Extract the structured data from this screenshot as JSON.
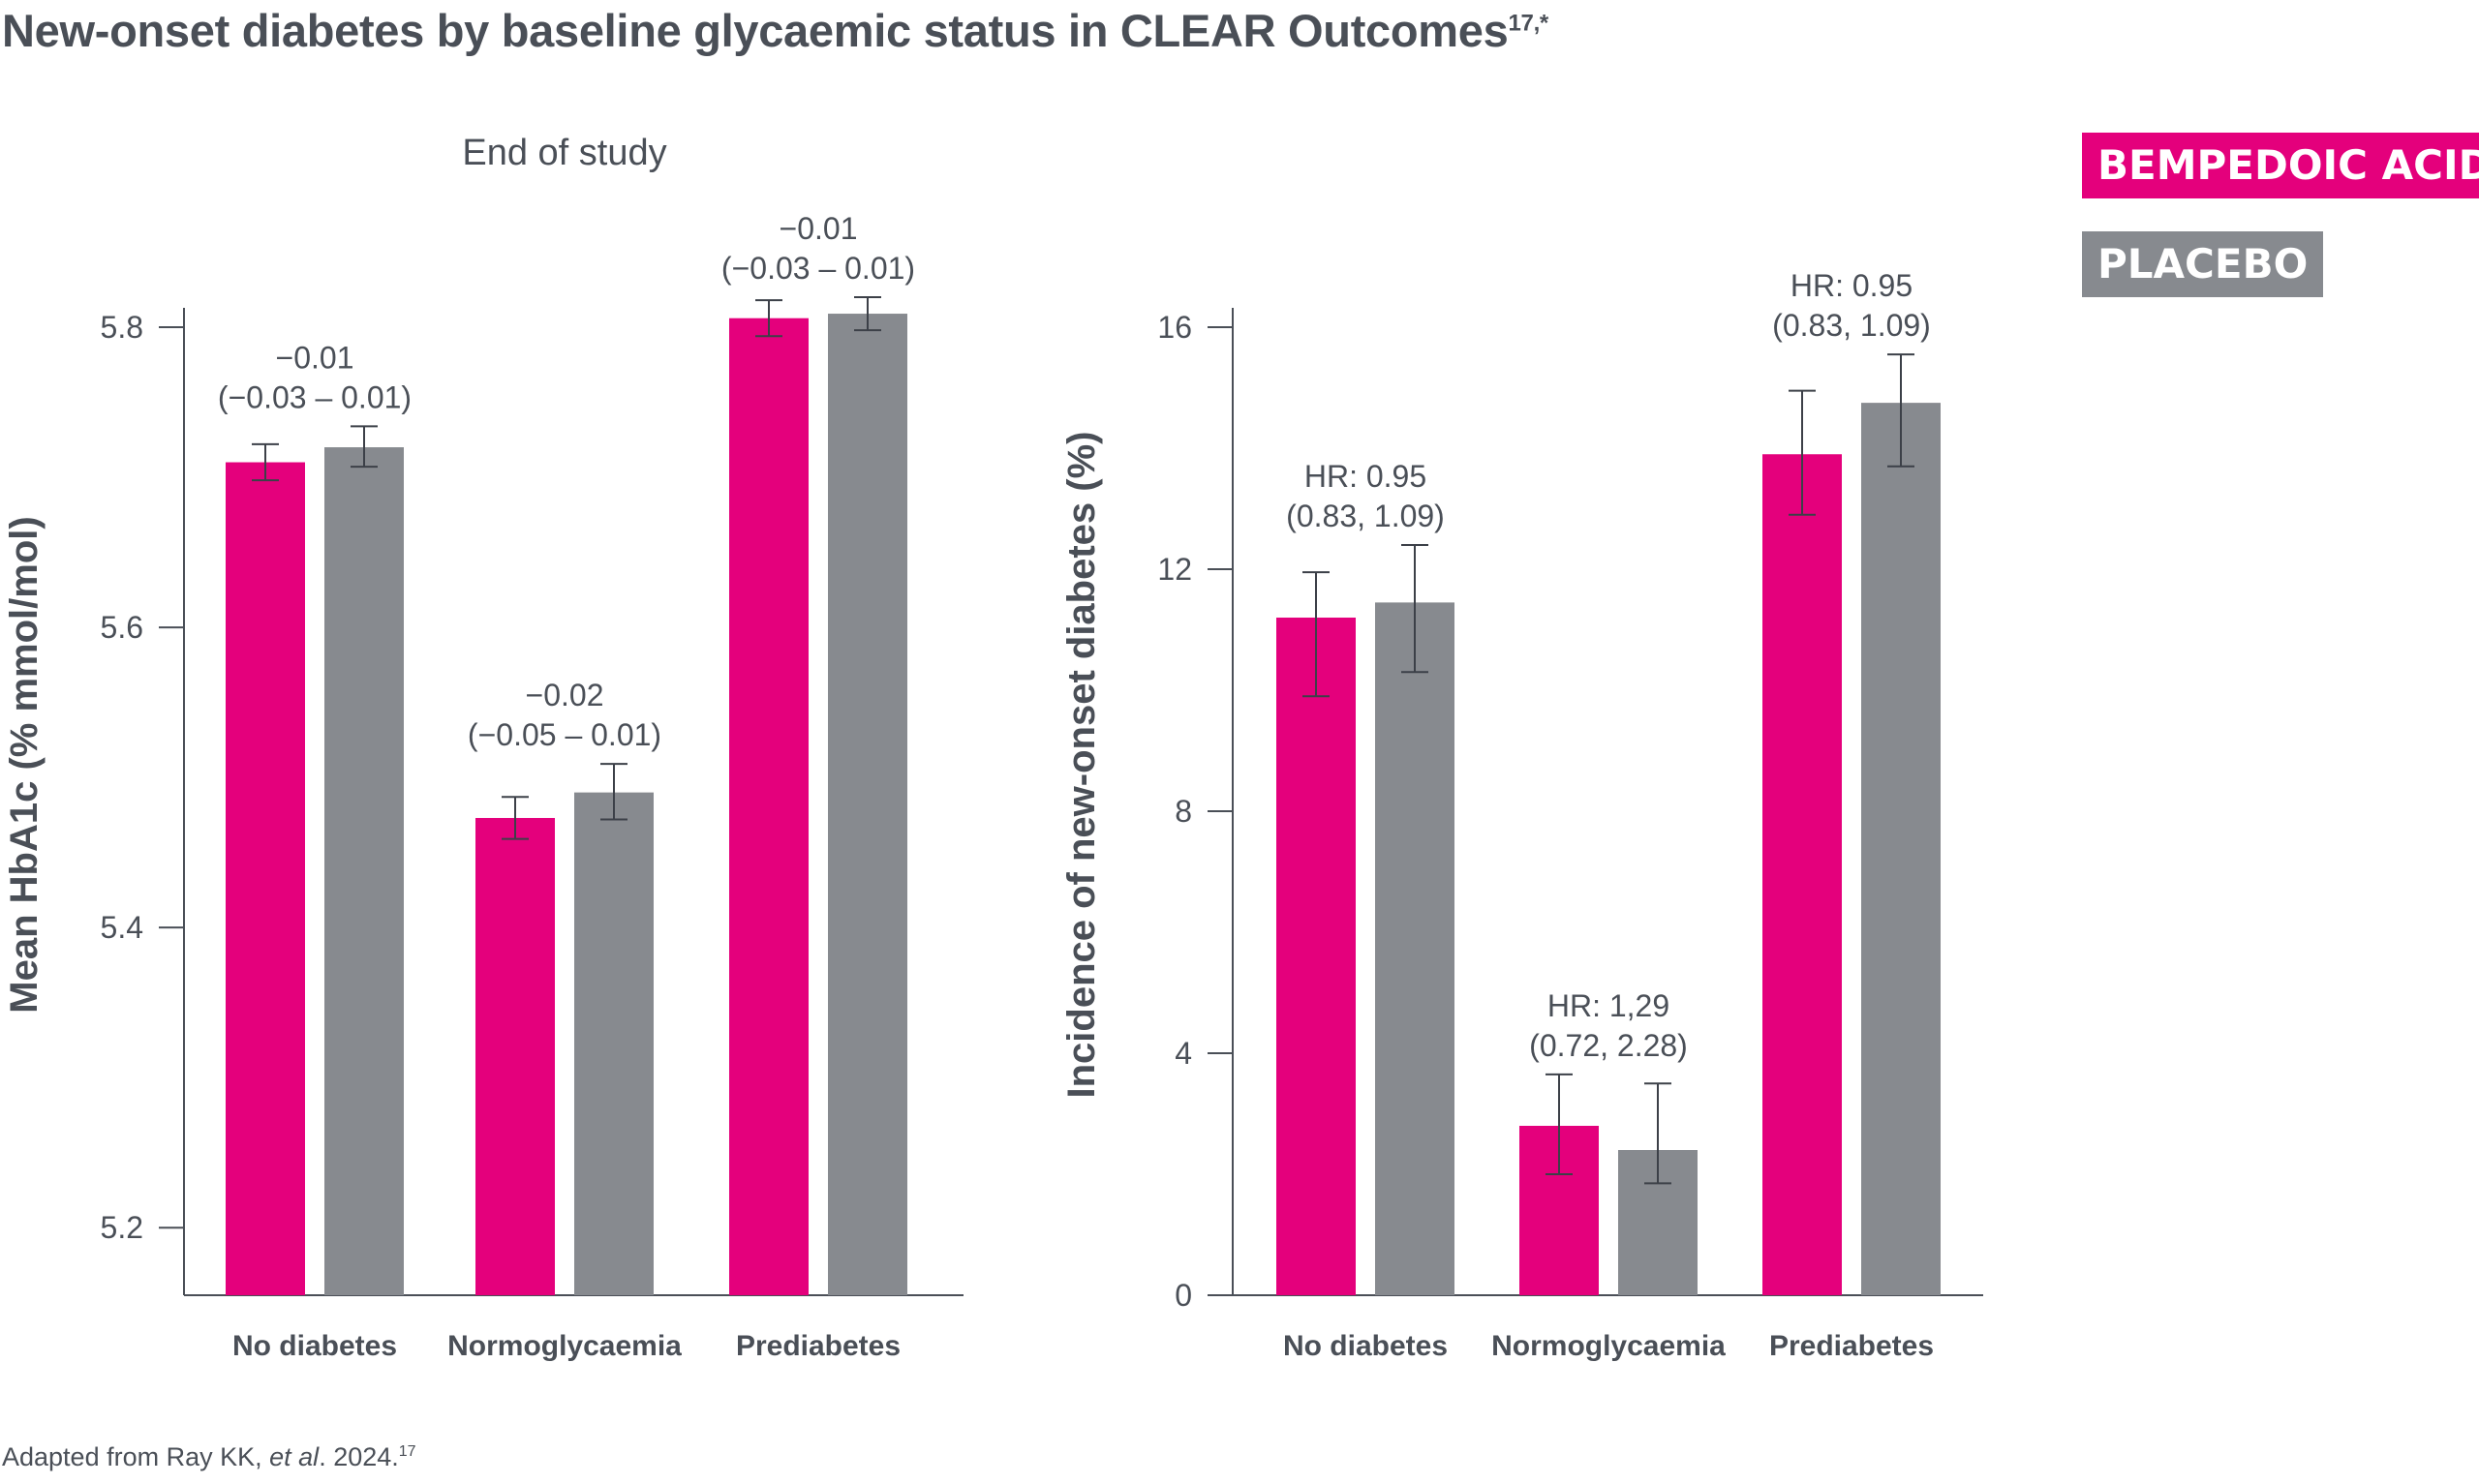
{
  "title": "New-onset diabetes by baseline glycaemic status in CLEAR Outcomes",
  "title_sup": "17,*",
  "footnote": {
    "prefix": "Adapted from Ray KK, ",
    "italic": "et al",
    "suffix": ". 2024.",
    "sup": "17"
  },
  "legend": [
    {
      "label": "BEMPEDOIC ACID",
      "color": "#e4007c"
    },
    {
      "label": "PLACEBO",
      "color": "#878a8f"
    }
  ],
  "colors": {
    "bempedoic": "#e4007c",
    "placebo": "#878a8f",
    "axis": "#4a4f57"
  },
  "chart_data": [
    {
      "type": "bar",
      "subtitle": "End of study",
      "ylabel": "Mean HbA1c (% mmol/mol)",
      "ylim": [
        5.155,
        5.8
      ],
      "yticks": [
        5.2,
        5.4,
        5.6,
        5.8
      ],
      "ytick_labels": [
        "5.2",
        "5.4",
        "5.6",
        "5.8"
      ],
      "categories": [
        "No diabetes",
        "Normoglycaemia",
        "Prediabetes"
      ],
      "series": [
        {
          "name": "BEMPEDOIC ACID",
          "values": [
            5.71,
            5.473,
            5.806
          ],
          "err_low": [
            5.698,
            5.459,
            5.794
          ],
          "err_high": [
            5.722,
            5.487,
            5.818
          ]
        },
        {
          "name": "PLACEBO",
          "values": [
            5.72,
            5.49,
            5.809
          ],
          "err_low": [
            5.707,
            5.472,
            5.798
          ],
          "err_high": [
            5.734,
            5.509,
            5.82
          ]
        }
      ],
      "annotations": [
        {
          "line1": "−0.01",
          "line2": "(−0.03 – 0.01)"
        },
        {
          "line1": "−0.02",
          "line2": "(−0.05 – 0.01)"
        },
        {
          "line1": "−0.01",
          "line2": "(−0.03 – 0.01)"
        }
      ]
    },
    {
      "type": "bar",
      "ylabel": "Incidence of new-onset diabetes (%)",
      "ylim": [
        0,
        16
      ],
      "yticks": [
        0,
        4,
        8,
        12,
        16
      ],
      "ytick_labels": [
        "0",
        "4",
        "8",
        "12",
        "16"
      ],
      "categories": [
        "No diabetes",
        "Normoglycaemia",
        "Prediabetes"
      ],
      "series": [
        {
          "name": "BEMPEDOIC ACID",
          "values": [
            11.2,
            2.8,
            13.9
          ],
          "err_low": [
            9.9,
            2.0,
            12.9
          ],
          "err_high": [
            11.95,
            3.65,
            14.95
          ]
        },
        {
          "name": "PLACEBO",
          "values": [
            11.45,
            2.4,
            14.75
          ],
          "err_low": [
            10.3,
            1.85,
            13.7
          ],
          "err_high": [
            12.4,
            3.5,
            15.55
          ]
        }
      ],
      "annotations": [
        {
          "line1": "HR: 0.95",
          "line2": "(0.83, 1.09)"
        },
        {
          "line1": "HR: 1,29",
          "line2": "(0.72, 2.28)"
        },
        {
          "line1": "HR: 0.95",
          "line2": "(0.83, 1.09)"
        }
      ]
    }
  ]
}
